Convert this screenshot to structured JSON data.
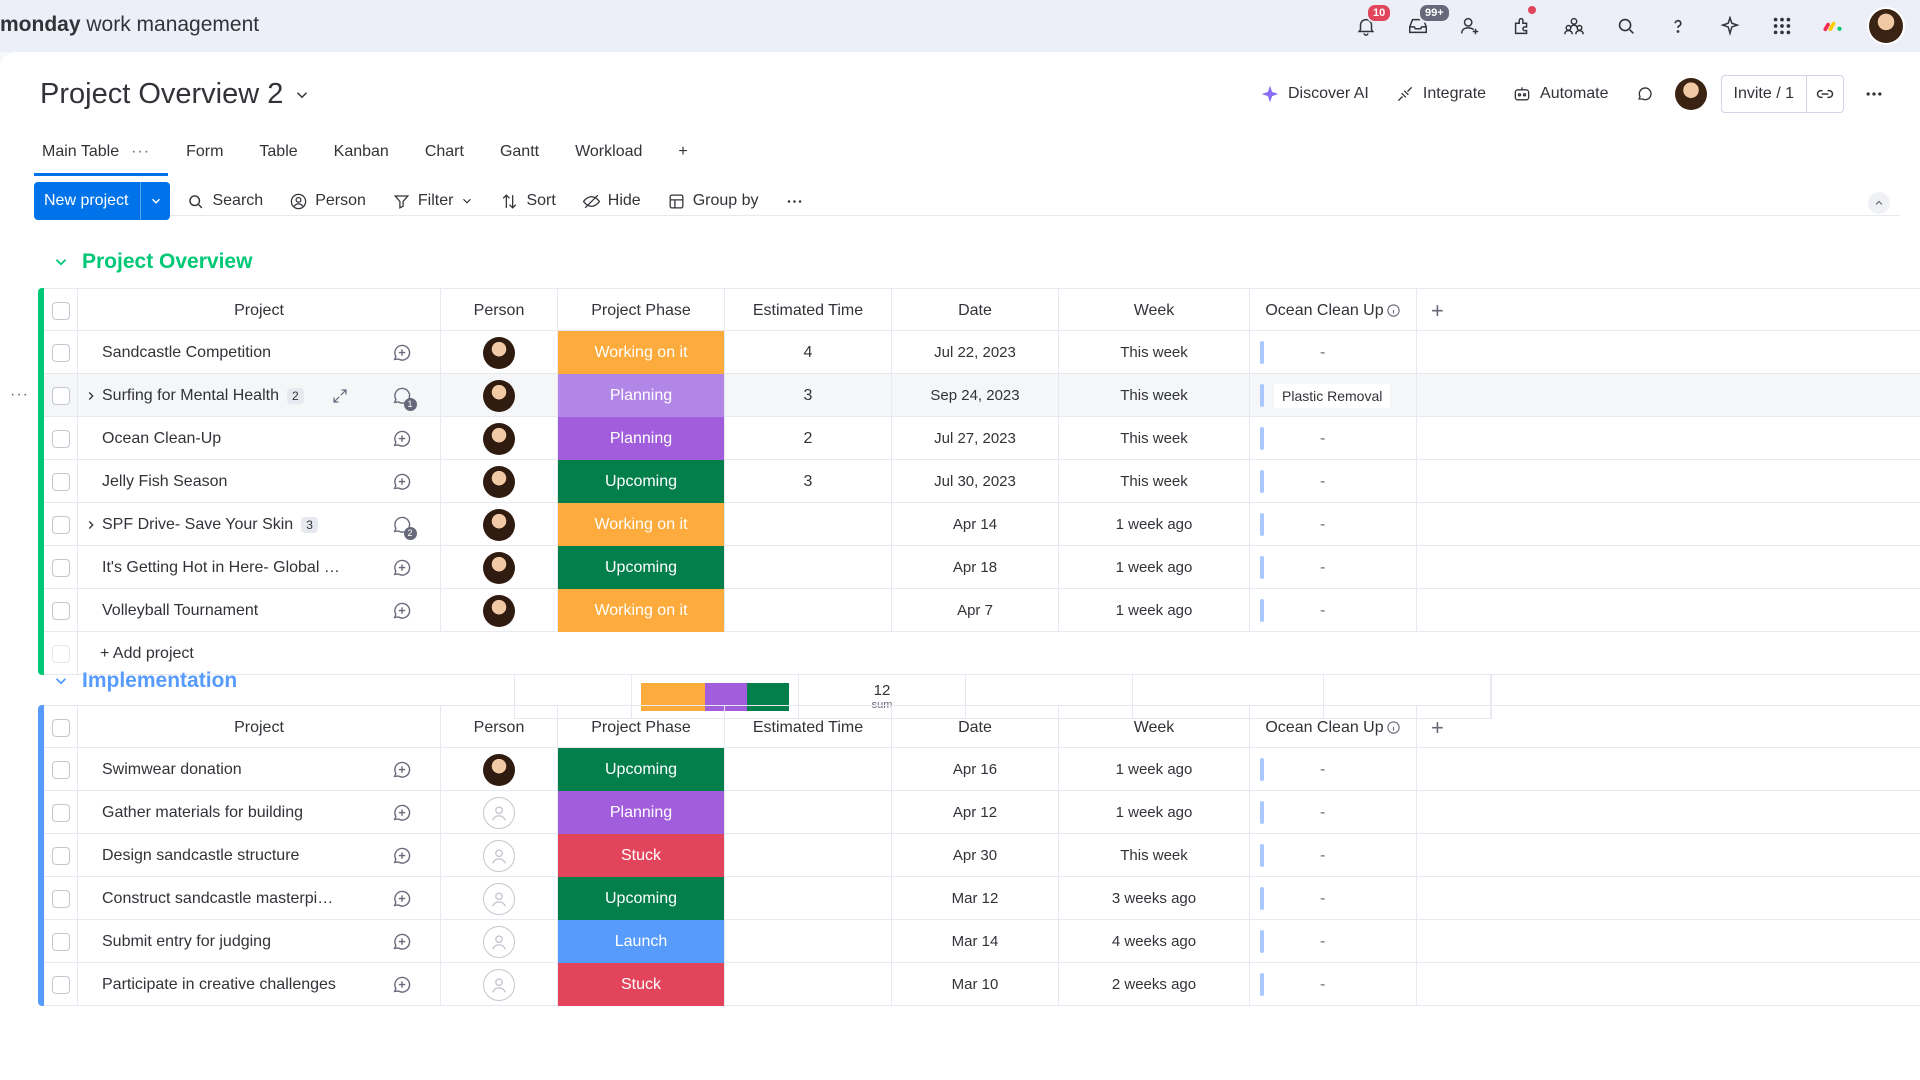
{
  "brand": {
    "bold": "monday",
    "rest": " work management"
  },
  "topbar": {
    "notifications_badge": "10",
    "inbox_badge": "99+"
  },
  "title": "Project Overview 2",
  "header_actions": {
    "discover_ai": "Discover AI",
    "integrate": "Integrate",
    "automate": "Automate",
    "invite": "Invite / 1"
  },
  "tabs": [
    {
      "label": "Main Table",
      "active": true
    },
    {
      "label": "Form"
    },
    {
      "label": "Table"
    },
    {
      "label": "Kanban"
    },
    {
      "label": "Chart"
    },
    {
      "label": "Gantt"
    },
    {
      "label": "Workload"
    },
    {
      "label": "+"
    }
  ],
  "toolbar": {
    "new_project": "New project",
    "search": "Search",
    "person": "Person",
    "filter": "Filter",
    "sort": "Sort",
    "hide": "Hide",
    "group_by": "Group by"
  },
  "columns": {
    "project": "Project",
    "person": "Person",
    "phase": "Project Phase",
    "est": "Estimated Time",
    "date": "Date",
    "week": "Week",
    "ocean": "Ocean Clean Up"
  },
  "colors": {
    "working": "#fdab3d",
    "planning": "#a25ddc",
    "planning_hover": "#b286e6",
    "upcoming": "#037f4c",
    "stuck": "#e2445c",
    "launch": "#579bfc",
    "group1": "#00c875",
    "group2": "#579bfc"
  },
  "group1": {
    "title": "Project Overview",
    "add_label": "+ Add project",
    "summary": {
      "sum": "12",
      "sum_label": "sum"
    },
    "rows": [
      {
        "name": "Sandcastle Competition",
        "phase": "Working on it",
        "phase_key": "working",
        "est": "4",
        "date": "Jul 22, 2023",
        "week": "This week",
        "ocean": "-"
      },
      {
        "name": "Surfing for Mental Health",
        "sub": "2",
        "phase": "Planning",
        "phase_key": "planning_hover",
        "est": "3",
        "date": "Sep 24, 2023",
        "week": "This week",
        "ocean": "Plastic Removal",
        "updates": "1"
      },
      {
        "name": "Ocean Clean-Up",
        "phase": "Planning",
        "phase_key": "planning",
        "est": "2",
        "date": "Jul 27, 2023",
        "week": "This week",
        "ocean": "-"
      },
      {
        "name": "Jelly Fish Season",
        "phase": "Upcoming",
        "phase_key": "upcoming",
        "est": "3",
        "date": "Jul 30, 2023",
        "week": "This week",
        "ocean": "-"
      },
      {
        "name": "SPF Drive- Save Your Skin",
        "sub": "3",
        "phase": "Working on it",
        "phase_key": "working",
        "est": "",
        "date": "Apr 14",
        "week": "1 week ago",
        "ocean": "-",
        "updates": "2"
      },
      {
        "name": "It's Getting Hot in Here- Global Warmi...",
        "phase": "Upcoming",
        "phase_key": "upcoming",
        "est": "",
        "date": "Apr 18",
        "week": "1 week ago",
        "ocean": "-"
      },
      {
        "name": "Volleyball Tournament",
        "phase": "Working on it",
        "phase_key": "working",
        "est": "",
        "date": "Apr 7",
        "week": "1 week ago",
        "ocean": "-"
      }
    ]
  },
  "group2": {
    "title": "Implementation",
    "rows": [
      {
        "name": "Swimwear donation",
        "phase": "Upcoming",
        "phase_key": "upcoming",
        "date": "Apr 16",
        "week": "1 week ago",
        "ocean": "-",
        "avatar": true
      },
      {
        "name": "Gather materials for building",
        "phase": "Planning",
        "phase_key": "planning",
        "date": "Apr 12",
        "week": "1 week ago",
        "ocean": "-"
      },
      {
        "name": "Design sandcastle structure",
        "phase": "Stuck",
        "phase_key": "stuck",
        "date": "Apr 30",
        "week": "This week",
        "ocean": "-"
      },
      {
        "name": "Construct sandcastle masterpiece",
        "phase": "Upcoming",
        "phase_key": "upcoming",
        "date": "Mar 12",
        "week": "3 weeks ago",
        "ocean": "-"
      },
      {
        "name": "Submit entry for judging",
        "phase": "Launch",
        "phase_key": "launch",
        "date": "Mar 14",
        "week": "4 weeks ago",
        "ocean": "-"
      },
      {
        "name": "Participate in creative challenges",
        "phase": "Stuck",
        "phase_key": "stuck",
        "date": "Mar 10",
        "week": "2 weeks ago",
        "ocean": "-"
      }
    ]
  }
}
